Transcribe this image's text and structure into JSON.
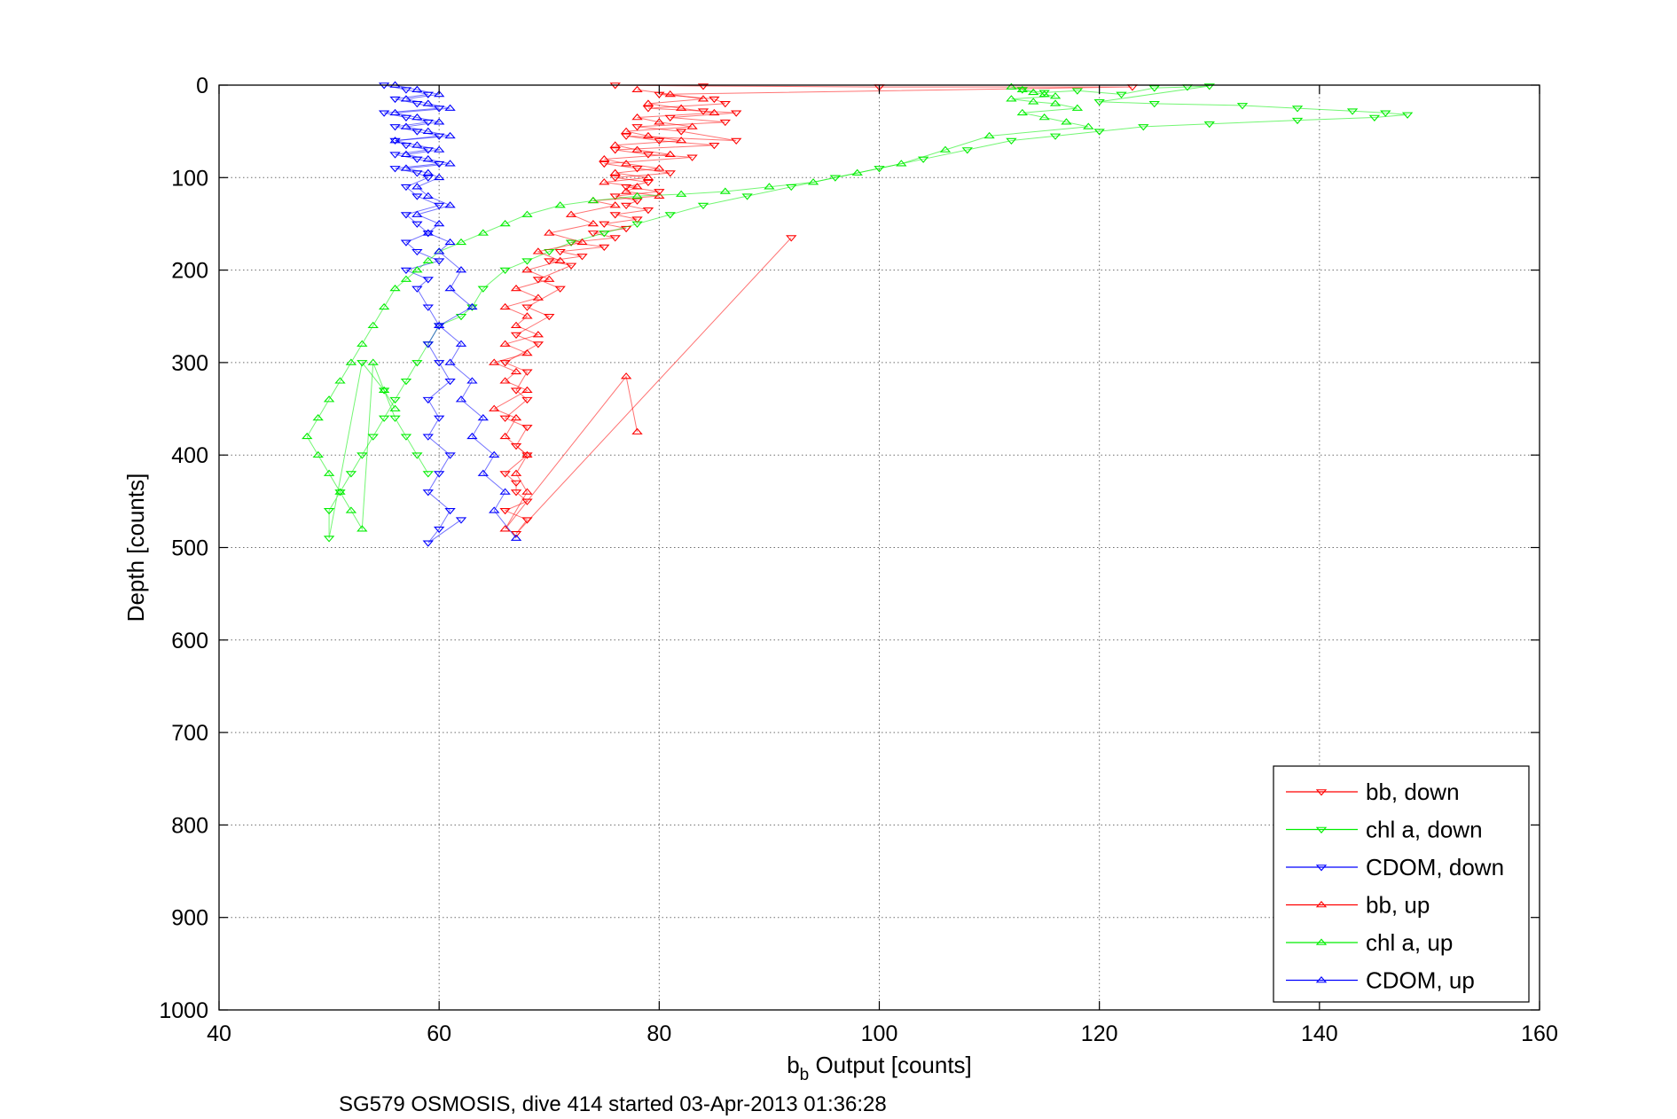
{
  "chart_data": {
    "type": "scatter",
    "title": "",
    "xlabel": {
      "main": "b",
      "sub": "b",
      "rest": " Output [counts]"
    },
    "ylabel": "Depth [counts]",
    "caption": "SG579 OSMOSIS, dive 414 started 03-Apr-2013 01:36:28",
    "xlim": [
      40,
      160
    ],
    "ylim": [
      0,
      1000
    ],
    "y_reversed": true,
    "grid": true,
    "legend_position": "bottom-right",
    "x_ticks": [
      "40",
      "60",
      "80",
      "100",
      "120",
      "140",
      "160"
    ],
    "y_ticks": [
      "0",
      "100",
      "200",
      "300",
      "400",
      "500",
      "600",
      "700",
      "800",
      "900",
      "1000"
    ],
    "series": [
      {
        "name": "bb, down",
        "color": "#ff0000",
        "marker": "triangle-down",
        "x": [
          76,
          84,
          100,
          123,
          80,
          85,
          86,
          79,
          84,
          87,
          81,
          86,
          78,
          82,
          87,
          77,
          80,
          85,
          76,
          79,
          83,
          75,
          78,
          81,
          76,
          79,
          77,
          80,
          76,
          78,
          77,
          79,
          76,
          78,
          75,
          77,
          74,
          76,
          72,
          75,
          71,
          73,
          70,
          72,
          69,
          71,
          68,
          70,
          67,
          69,
          66,
          68,
          67,
          68,
          66,
          68,
          67,
          68,
          66,
          67,
          67,
          68,
          66,
          68,
          67,
          92
        ],
        "y": [
          0,
          1,
          2,
          2,
          10,
          15,
          20,
          25,
          28,
          30,
          35,
          40,
          45,
          50,
          60,
          55,
          60,
          65,
          70,
          75,
          78,
          85,
          90,
          95,
          100,
          105,
          110,
          115,
          120,
          125,
          130,
          135,
          140,
          145,
          150,
          155,
          160,
          165,
          170,
          175,
          180,
          185,
          190,
          195,
          210,
          220,
          240,
          250,
          270,
          280,
          300,
          310,
          330,
          340,
          360,
          370,
          390,
          400,
          420,
          430,
          440,
          450,
          460,
          470,
          485,
          165
        ]
      },
      {
        "name": "chl a, down",
        "color": "#00ee00",
        "marker": "triangle-down",
        "x": [
          113,
          115,
          118,
          122,
          125,
          128,
          130,
          120,
          125,
          133,
          138,
          143,
          146,
          148,
          145,
          138,
          130,
          124,
          120,
          116,
          112,
          108,
          104,
          100,
          96,
          92,
          88,
          84,
          81,
          78,
          75,
          72,
          70,
          68,
          66,
          64,
          63,
          62,
          60,
          59,
          58,
          57,
          56,
          55,
          54,
          53,
          52,
          51,
          50,
          50,
          53,
          55,
          56,
          57,
          58,
          59
        ],
        "y": [
          5,
          8,
          6,
          10,
          3,
          2,
          1,
          18,
          20,
          22,
          25,
          28,
          30,
          32,
          35,
          38,
          42,
          45,
          50,
          55,
          60,
          70,
          80,
          90,
          100,
          110,
          120,
          130,
          140,
          150,
          160,
          170,
          180,
          190,
          200,
          220,
          240,
          250,
          260,
          280,
          300,
          320,
          340,
          360,
          380,
          400,
          420,
          440,
          460,
          490,
          300,
          330,
          360,
          380,
          400,
          420
        ]
      },
      {
        "name": "CDOM, down",
        "color": "#0000ff",
        "marker": "triangle-down",
        "x": [
          55,
          57,
          59,
          56,
          58,
          60,
          55,
          57,
          59,
          56,
          58,
          60,
          56,
          57,
          59,
          56,
          58,
          60,
          56,
          58,
          59,
          57,
          58,
          60,
          57,
          58,
          59,
          57,
          58,
          60,
          57,
          59,
          58,
          59,
          60,
          59,
          60,
          61,
          59,
          60,
          59,
          61,
          60,
          59,
          61,
          60,
          59,
          62
        ],
        "y": [
          0,
          5,
          10,
          15,
          20,
          25,
          30,
          35,
          40,
          45,
          50,
          55,
          60,
          65,
          70,
          75,
          80,
          85,
          90,
          95,
          100,
          110,
          120,
          130,
          140,
          150,
          160,
          170,
          180,
          190,
          200,
          210,
          220,
          240,
          260,
          280,
          300,
          320,
          340,
          360,
          380,
          400,
          420,
          440,
          460,
          480,
          495,
          470
        ]
      },
      {
        "name": "bb, up",
        "color": "#ff0000",
        "marker": "triangle-up",
        "x": [
          78,
          81,
          84,
          79,
          82,
          85,
          78,
          80,
          83,
          77,
          79,
          82,
          76,
          78,
          81,
          75,
          77,
          80,
          76,
          79,
          75,
          78,
          77,
          80,
          74,
          76,
          72,
          74,
          70,
          73,
          69,
          71,
          68,
          70,
          67,
          69,
          66,
          68,
          67,
          69,
          66,
          68,
          65,
          67,
          66,
          68,
          65,
          67,
          66,
          68,
          67,
          68,
          66,
          77,
          78
        ],
        "y": [
          5,
          10,
          15,
          20,
          25,
          30,
          35,
          40,
          45,
          50,
          55,
          60,
          65,
          70,
          75,
          80,
          85,
          90,
          95,
          100,
          105,
          110,
          115,
          120,
          125,
          130,
          140,
          150,
          160,
          170,
          180,
          190,
          200,
          210,
          220,
          230,
          240,
          250,
          260,
          270,
          280,
          290,
          300,
          310,
          320,
          330,
          350,
          360,
          380,
          400,
          420,
          440,
          480,
          315,
          375
        ]
      },
      {
        "name": "chl a, up",
        "color": "#00ee00",
        "marker": "triangle-up",
        "x": [
          112,
          113,
          114,
          115,
          116,
          112,
          114,
          116,
          118,
          113,
          115,
          117,
          119,
          110,
          106,
          102,
          98,
          94,
          90,
          86,
          82,
          78,
          74,
          71,
          68,
          66,
          64,
          62,
          60,
          59,
          58,
          57,
          56,
          55,
          54,
          53,
          52,
          51,
          50,
          49,
          48,
          49,
          50,
          51,
          52,
          53,
          54,
          55,
          56
        ],
        "y": [
          2,
          5,
          8,
          10,
          12,
          15,
          18,
          20,
          25,
          30,
          35,
          40,
          45,
          55,
          70,
          85,
          95,
          105,
          110,
          115,
          118,
          120,
          125,
          130,
          140,
          150,
          160,
          170,
          180,
          190,
          200,
          210,
          220,
          240,
          260,
          280,
          300,
          320,
          340,
          360,
          380,
          400,
          420,
          440,
          460,
          480,
          300,
          330,
          350
        ]
      },
      {
        "name": "CDOM, up",
        "color": "#0000ff",
        "marker": "triangle-up",
        "x": [
          56,
          58,
          60,
          57,
          59,
          61,
          56,
          58,
          60,
          57,
          59,
          61,
          56,
          58,
          60,
          57,
          59,
          61,
          57,
          59,
          60,
          58,
          59,
          61,
          58,
          60,
          59,
          61,
          60,
          62,
          61,
          63,
          60,
          62,
          61,
          63,
          62,
          64,
          63,
          65,
          64,
          66,
          65,
          67
        ],
        "y": [
          0,
          5,
          10,
          15,
          20,
          25,
          30,
          35,
          40,
          45,
          50,
          55,
          60,
          65,
          70,
          75,
          80,
          85,
          90,
          95,
          100,
          110,
          120,
          130,
          140,
          150,
          160,
          170,
          180,
          200,
          220,
          240,
          260,
          280,
          300,
          320,
          340,
          360,
          380,
          400,
          420,
          440,
          460,
          490
        ]
      }
    ]
  }
}
